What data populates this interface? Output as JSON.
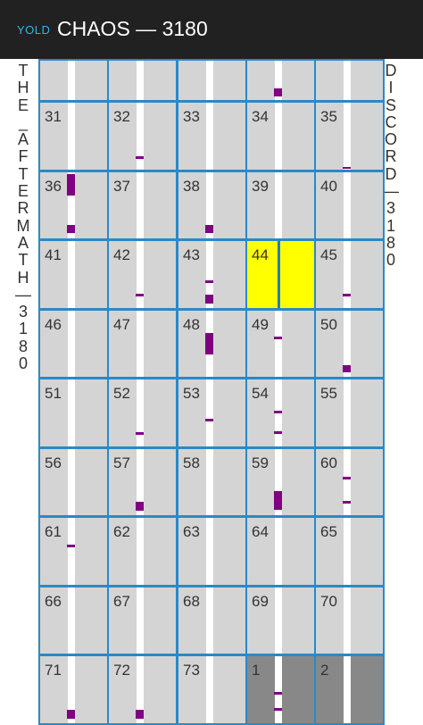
{
  "header": {
    "season_abbr": "YOLD",
    "title": "CHAOS — 3180"
  },
  "left_label_chars": [
    "T",
    "H",
    "E",
    "_",
    "A",
    "F",
    "T",
    "E",
    "R",
    "M",
    "A",
    "T",
    "H",
    "—",
    "3",
    "1",
    "8",
    "0"
  ],
  "right_label_chars": [
    "D",
    "I",
    "S",
    "C",
    "O",
    "R",
    "D",
    "—",
    "3",
    "1",
    "8",
    "0"
  ],
  "colors": {
    "grid_lines": "#2a89c8",
    "cell_bg": "#d4d4d4",
    "today_bg": "#ffff00",
    "other_month_bg": "#888888",
    "event_mark": "#800080"
  },
  "rows": [
    [
      {
        "day": ""
      },
      {
        "day": ""
      },
      {
        "day": ""
      },
      {
        "day": ""
      },
      {
        "day": ""
      }
    ],
    [
      {
        "day": "31"
      },
      {
        "day": "32"
      },
      {
        "day": "33"
      },
      {
        "day": "34"
      },
      {
        "day": "35"
      }
    ],
    [
      {
        "day": "36"
      },
      {
        "day": "37"
      },
      {
        "day": "38"
      },
      {
        "day": "39"
      },
      {
        "day": "40"
      }
    ],
    [
      {
        "day": "41"
      },
      {
        "day": "42"
      },
      {
        "day": "43"
      },
      {
        "day": "44",
        "state": "today"
      },
      {
        "day": "45"
      }
    ],
    [
      {
        "day": "46"
      },
      {
        "day": "47"
      },
      {
        "day": "48"
      },
      {
        "day": "49"
      },
      {
        "day": "50"
      }
    ],
    [
      {
        "day": "51"
      },
      {
        "day": "52"
      },
      {
        "day": "53"
      },
      {
        "day": "54"
      },
      {
        "day": "55"
      }
    ],
    [
      {
        "day": "56"
      },
      {
        "day": "57"
      },
      {
        "day": "58"
      },
      {
        "day": "59"
      },
      {
        "day": "60"
      }
    ],
    [
      {
        "day": "61"
      },
      {
        "day": "62"
      },
      {
        "day": "63"
      },
      {
        "day": "64"
      },
      {
        "day": "65"
      }
    ],
    [
      {
        "day": "66"
      },
      {
        "day": "67"
      },
      {
        "day": "68"
      },
      {
        "day": "69"
      },
      {
        "day": "70"
      }
    ],
    [
      {
        "day": "71"
      },
      {
        "day": "72"
      },
      {
        "day": "73"
      },
      {
        "day": "1",
        "state": "other"
      },
      {
        "day": "2",
        "state": "other"
      }
    ]
  ]
}
